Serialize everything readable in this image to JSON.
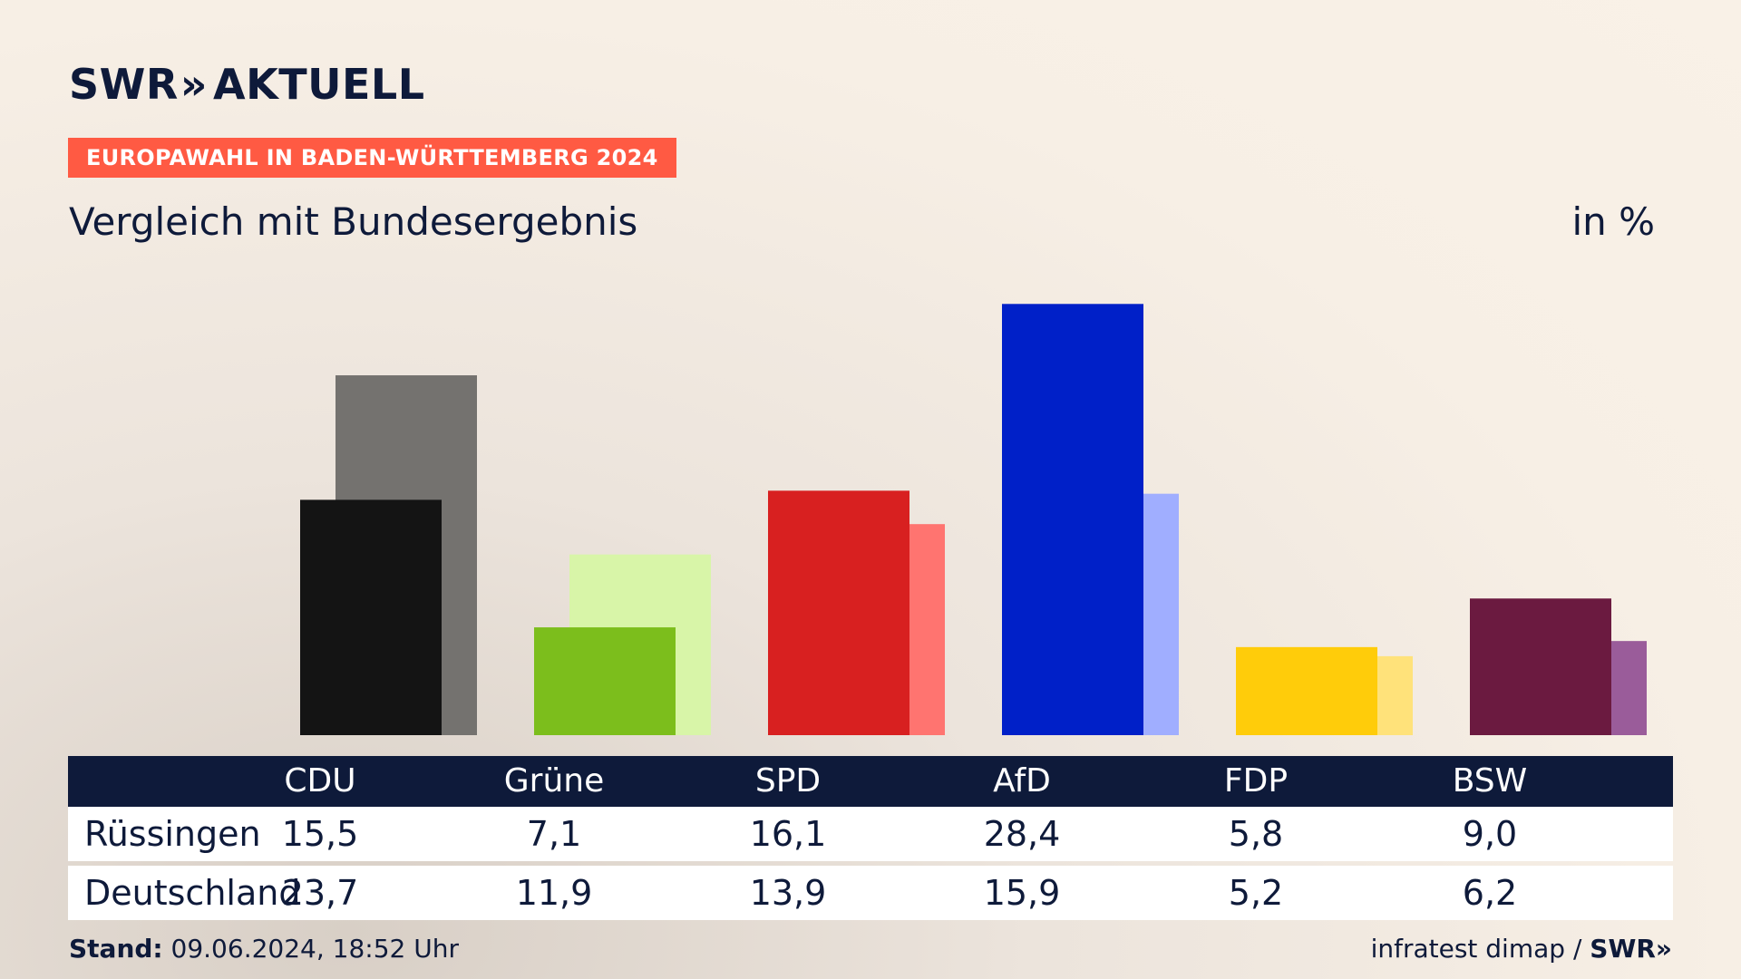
{
  "brand": {
    "name": "SWR",
    "chevrons": "»",
    "product": "AKTUELL"
  },
  "tag": "EUROPAWAHL IN BADEN-WÜRTTEMBERG 2024",
  "subtitle": "Vergleich mit Bundesergebnis",
  "unit": "in %",
  "table": {
    "row1_label": "Rüssingen",
    "row2_label": "Deutschland"
  },
  "footer": {
    "stand_label": "Stand:",
    "stand_value": "09.06.2024, 18:52 Uhr",
    "source": "infratest dimap",
    "separator": "/",
    "logo": "SWR»"
  },
  "chart_data": {
    "type": "bar",
    "categories": [
      "CDU",
      "Grüne",
      "SPD",
      "AfD",
      "FDP",
      "BSW"
    ],
    "series": [
      {
        "name": "Rüssingen",
        "values": [
          15.5,
          7.1,
          16.1,
          28.4,
          5.8,
          9.0
        ],
        "display": [
          "15,5",
          "7,1",
          "16,1",
          "28,4",
          "5,8",
          "9,0"
        ]
      },
      {
        "name": "Deutschland",
        "values": [
          23.7,
          11.9,
          13.9,
          15.9,
          5.2,
          6.2
        ],
        "display": [
          "23,7",
          "11,9",
          "13,9",
          "15,9",
          "5,2",
          "6,2"
        ]
      }
    ],
    "colors_primary": [
      "#141414",
      "#7cbe1c",
      "#d82020",
      "#0020c8",
      "#ffcc0a",
      "#6b1a40"
    ],
    "colors_secondary": [
      "#74726f",
      "#d8f5a8",
      "#ff7470",
      "#a0aeff",
      "#ffe27a",
      "#9a5c9a"
    ],
    "ylim": [
      0,
      30
    ]
  }
}
